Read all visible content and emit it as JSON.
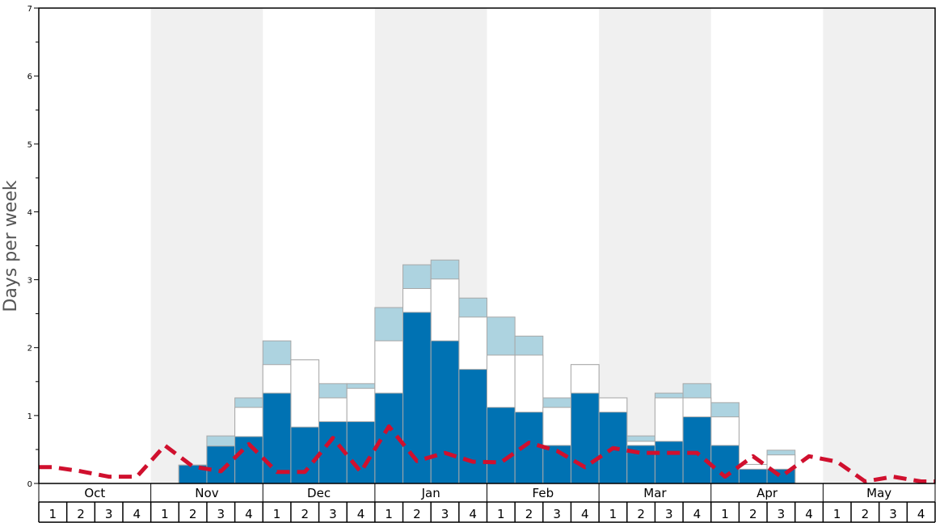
{
  "chart_data": {
    "type": "bar",
    "ylabel": "Days per week",
    "ylim": [
      0,
      7
    ],
    "yticks": [
      "0",
      "1",
      "2",
      "3",
      "4",
      "5",
      "6",
      "7"
    ],
    "months": [
      "Oct",
      "Nov",
      "Dec",
      "Jan",
      "Feb",
      "Mar",
      "Apr",
      "May"
    ],
    "week_labels": [
      "1",
      "2",
      "3",
      "4"
    ],
    "grid": false,
    "colors": {
      "series_dark": "#0072b3",
      "series_mid": "#ffffff",
      "series_light": "#add3e0",
      "average_line": "#d0102e",
      "band_shade": "#f0f0f0"
    },
    "series": [
      {
        "values": [
          0,
          0,
          0,
          0,
          0,
          0.27,
          0.55,
          0.69,
          1.33,
          0.83,
          0.91,
          0.91,
          1.33,
          2.52,
          2.1,
          1.68,
          1.12,
          1.05,
          0.56,
          1.33,
          1.05,
          0.56,
          0.62,
          0.98,
          0.56,
          0.21,
          0.21,
          0,
          0,
          0,
          0,
          0
        ]
      },
      {
        "values": [
          0,
          0,
          0,
          0,
          0,
          0.27,
          0.55,
          1.12,
          1.75,
          1.82,
          1.26,
          1.4,
          2.1,
          2.87,
          3.01,
          2.45,
          1.89,
          1.89,
          1.12,
          1.75,
          1.26,
          0.62,
          1.26,
          1.26,
          0.98,
          0.28,
          0.42,
          0,
          0,
          0,
          0,
          0
        ]
      },
      {
        "values": [
          0,
          0,
          0,
          0,
          0,
          0.27,
          0.7,
          1.26,
          2.1,
          1.82,
          1.47,
          1.47,
          2.59,
          3.22,
          3.29,
          2.73,
          2.45,
          2.17,
          1.26,
          1.75,
          1.26,
          0.7,
          1.33,
          1.47,
          1.19,
          0.28,
          0.49,
          0,
          0,
          0,
          0,
          0
        ]
      },
      {
        "values": [
          0.24,
          0.18,
          0.1,
          0.1,
          0.56,
          0.25,
          0.18,
          0.58,
          0.17,
          0.17,
          0.67,
          0.17,
          0.84,
          0.33,
          0.45,
          0.32,
          0.31,
          0.6,
          0.48,
          0.24,
          0.52,
          0.45,
          0.45,
          0.45,
          0.1,
          0.4,
          0.1,
          0.4,
          0.32,
          0.03,
          0.1,
          0.03
        ]
      }
    ]
  }
}
